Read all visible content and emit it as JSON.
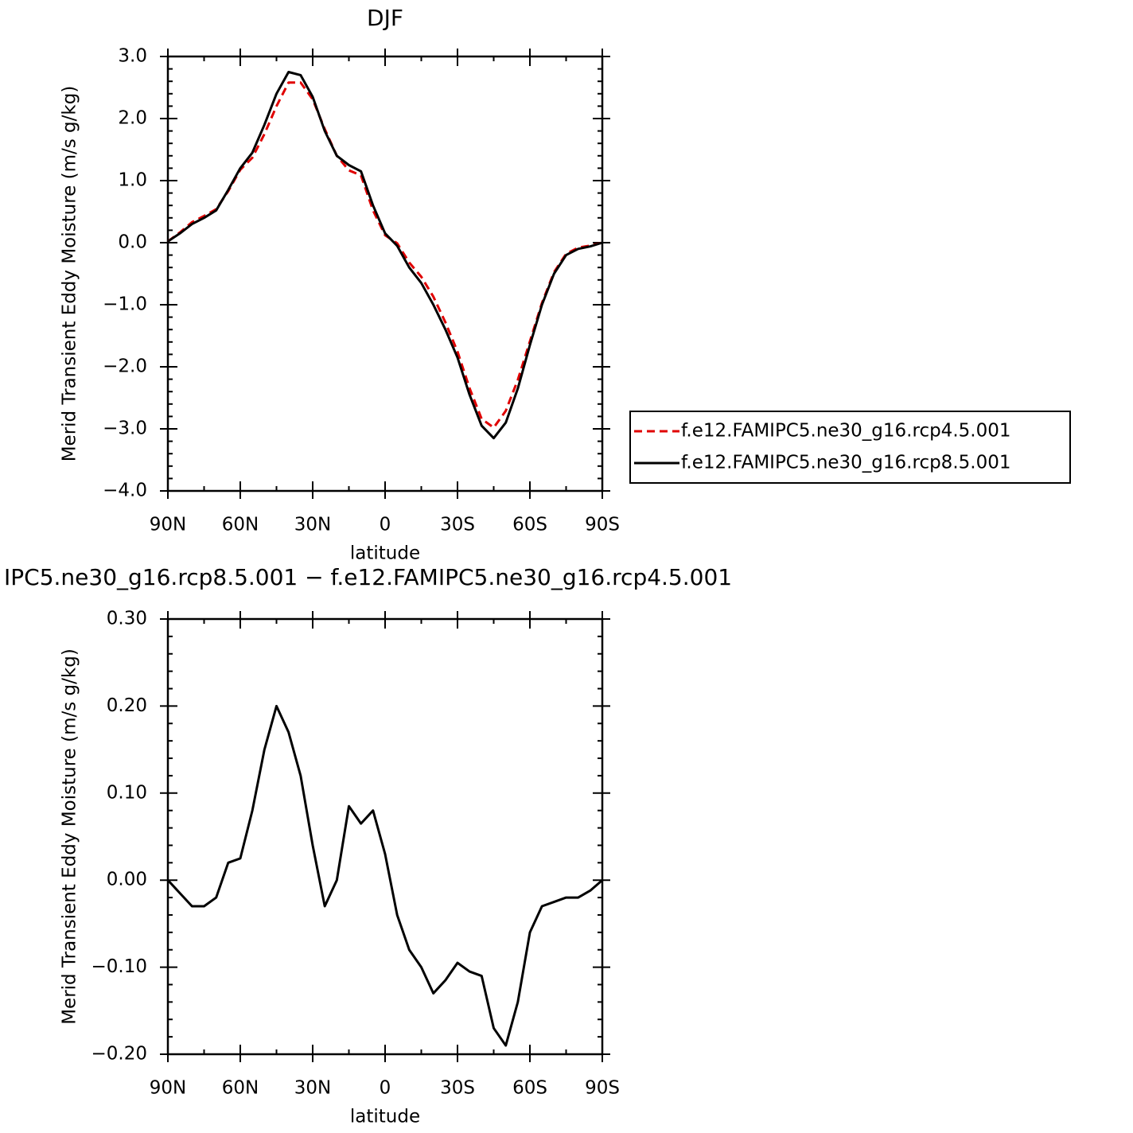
{
  "chart_data": [
    {
      "type": "line",
      "title": "DJF",
      "xlabel": "latitude",
      "ylabel": "Merid Transient Eddy Moisture (m/s g/kg)",
      "x": [
        90,
        85,
        80,
        75,
        70,
        65,
        60,
        55,
        50,
        45,
        40,
        35,
        30,
        25,
        20,
        15,
        10,
        5,
        0,
        -5,
        -10,
        -15,
        -20,
        -25,
        -30,
        -35,
        -40,
        -45,
        -50,
        -55,
        -60,
        -65,
        -70,
        -75,
        -80,
        -85,
        -90
      ],
      "series": [
        {
          "name": "f.e12.FAMIPC5.ne30_g16.rcp4.5.001",
          "color": "#e00000",
          "linestyle": "dashed",
          "values": [
            0.02,
            0.165,
            0.33,
            0.43,
            0.54,
            0.83,
            1.175,
            1.37,
            1.75,
            2.2,
            2.58,
            2.58,
            2.31,
            1.83,
            1.4,
            1.165,
            1.085,
            0.52,
            0.12,
            -0.01,
            -0.32,
            -0.55,
            -0.87,
            -1.285,
            -1.755,
            -2.345,
            -2.84,
            -2.98,
            -2.71,
            -2.21,
            -1.59,
            -0.97,
            -0.475,
            -0.18,
            -0.08,
            -0.048,
            0.0
          ]
        },
        {
          "name": "f.e12.FAMIPC5.ne30_g16.rcp8.5.001",
          "color": "#000000",
          "linestyle": "solid",
          "values": [
            0.02,
            0.15,
            0.3,
            0.4,
            0.52,
            0.85,
            1.2,
            1.45,
            1.9,
            2.4,
            2.75,
            2.7,
            2.35,
            1.8,
            1.4,
            1.25,
            1.15,
            0.6,
            0.15,
            -0.05,
            -0.4,
            -0.65,
            -1.0,
            -1.4,
            -1.85,
            -2.45,
            -2.95,
            -3.15,
            -2.9,
            -2.35,
            -1.65,
            -1.0,
            -0.5,
            -0.2,
            -0.1,
            -0.06,
            0.0
          ]
        }
      ],
      "xlim": [
        90,
        -90
      ],
      "xticks": [
        {
          "value": 90,
          "label": "90N"
        },
        {
          "value": 60,
          "label": "60N"
        },
        {
          "value": 30,
          "label": "30N"
        },
        0,
        {
          "value": -30,
          "label": "30S"
        },
        {
          "value": -60,
          "label": "60S"
        },
        {
          "value": -90,
          "label": "90S"
        }
      ],
      "ylim": [
        -4,
        3
      ],
      "yticks": [
        {
          "value": 3,
          "label": "3.0"
        },
        {
          "value": 2,
          "label": "2.0"
        },
        {
          "value": 1,
          "label": "1.0"
        },
        {
          "value": 0,
          "label": "0.0"
        },
        {
          "value": -1,
          "label": "−1.0"
        },
        {
          "value": -2,
          "label": "−2.0"
        },
        {
          "value": -3,
          "label": "−3.0"
        },
        {
          "value": -4,
          "label": "−4.0"
        }
      ],
      "legend": "right"
    },
    {
      "type": "line",
      "title": "IPC5.ne30_g16.rcp8.5.001 − f.e12.FAMIPC5.ne30_g16.rcp4.5.001",
      "xlabel": "latitude",
      "ylabel": "Merid Transient Eddy Moisture (m/s g/kg)",
      "x": [
        90,
        85,
        80,
        75,
        70,
        65,
        60,
        55,
        50,
        45,
        40,
        35,
        30,
        25,
        20,
        15,
        10,
        5,
        0,
        -5,
        -10,
        -15,
        -20,
        -25,
        -30,
        -35,
        -40,
        -45,
        -50,
        -55,
        -60,
        -65,
        -70,
        -75,
        -80,
        -85,
        -90
      ],
      "values": [
        0.0,
        -0.015,
        -0.03,
        -0.03,
        -0.02,
        0.02,
        0.025,
        0.08,
        0.15,
        0.2,
        0.17,
        0.12,
        0.04,
        -0.03,
        0.0,
        0.085,
        0.065,
        0.08,
        0.03,
        -0.04,
        -0.08,
        -0.1,
        -0.13,
        -0.115,
        -0.095,
        -0.105,
        -0.11,
        -0.17,
        -0.19,
        -0.14,
        -0.06,
        -0.03,
        -0.025,
        -0.02,
        -0.02,
        -0.012,
        0.0
      ],
      "color": "#000000",
      "linestyle": "solid",
      "xlim": [
        90,
        -90
      ],
      "xticks": [
        {
          "value": 90,
          "label": "90N"
        },
        {
          "value": 60,
          "label": "60N"
        },
        {
          "value": 30,
          "label": "30N"
        },
        0,
        {
          "value": -30,
          "label": "30S"
        },
        {
          "value": -60,
          "label": "60S"
        },
        {
          "value": -90,
          "label": "90S"
        }
      ],
      "ylim": [
        -0.2,
        0.3
      ],
      "yticks": [
        {
          "value": 0.3,
          "label": "0.30"
        },
        {
          "value": 0.2,
          "label": "0.20"
        },
        {
          "value": 0.1,
          "label": "0.10"
        },
        {
          "value": 0,
          "label": "0.00"
        },
        {
          "value": -0.1,
          "label": "−0.10"
        },
        {
          "value": -0.2,
          "label": "−0.20"
        }
      ]
    }
  ]
}
